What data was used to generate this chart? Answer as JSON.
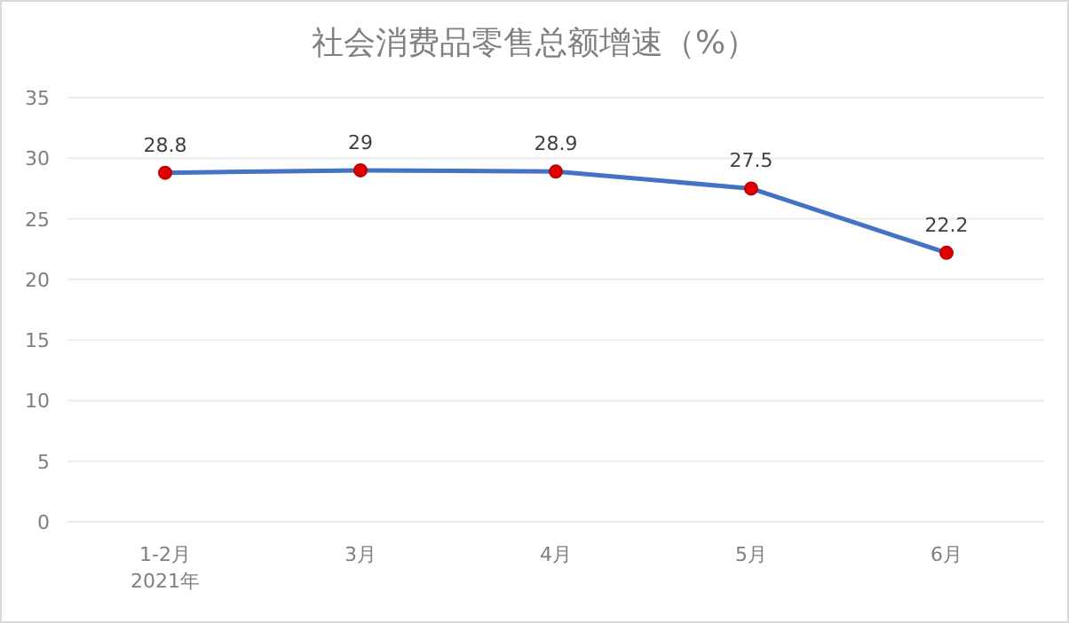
{
  "chart_data": {
    "type": "line",
    "title": "社会消费品零售总额增速（%）",
    "categories": [
      "1-2月\n2021年",
      "3月",
      "4月",
      "5月",
      "6月"
    ],
    "series": [
      {
        "color": "#4472c4",
        "values": [
          28.8,
          29,
          28.9,
          27.5,
          22.2
        ]
      }
    ],
    "marker": "circle",
    "data_labels": true,
    "grid": "y",
    "ylim": [
      0,
      35
    ],
    "yticks": [
      0,
      5,
      10,
      15,
      20,
      25,
      30,
      35
    ]
  }
}
